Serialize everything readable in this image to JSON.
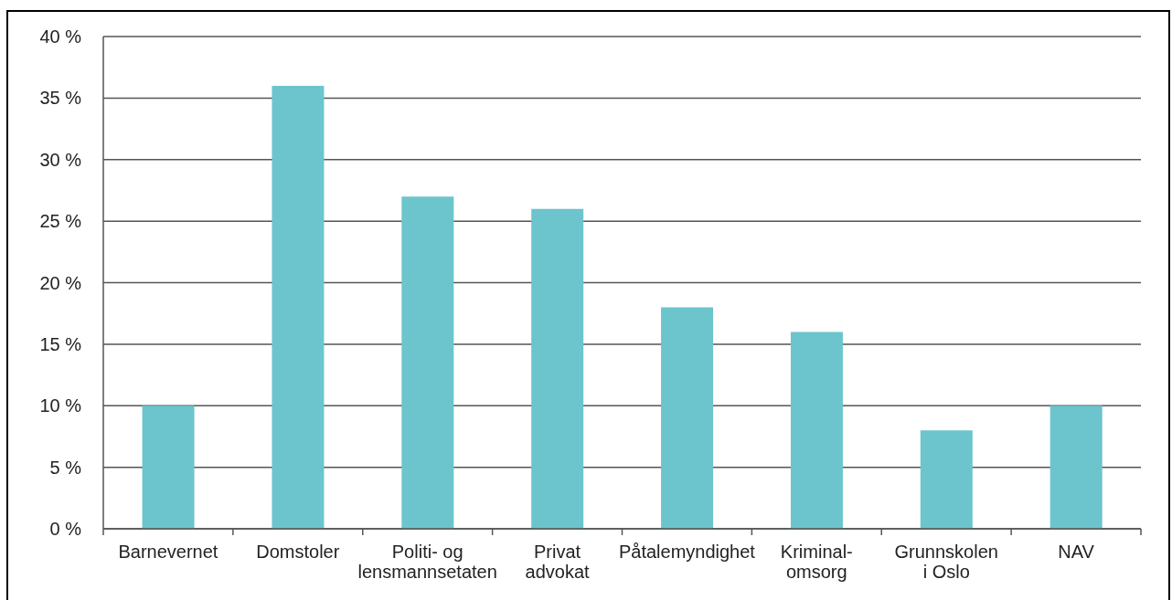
{
  "chart_data": {
    "type": "bar",
    "categories": [
      "Barnevernet",
      "Domstoler",
      "Politi- og\nlensmannsetaten",
      "Privat\nadvokat",
      "Påtalemyndighet",
      "Kriminal-\nomsorg",
      "Grunnskolen\ni Oslo",
      "NAV"
    ],
    "values": [
      10,
      36,
      27,
      26,
      18,
      16,
      8,
      10
    ],
    "color": "#6cc5cc",
    "ylim": [
      0,
      40
    ],
    "yticks": [
      {
        "value": 0,
        "label": "0 %"
      },
      {
        "value": 5,
        "label": "5 %"
      },
      {
        "value": 10,
        "label": "10 %"
      },
      {
        "value": 15,
        "label": "15 %"
      },
      {
        "value": 20,
        "label": "20 %"
      },
      {
        "value": 25,
        "label": "25 %"
      },
      {
        "value": 30,
        "label": "30 %"
      },
      {
        "value": 35,
        "label": "35 %"
      },
      {
        "value": 40,
        "label": "40 %"
      }
    ],
    "grid": "y"
  }
}
